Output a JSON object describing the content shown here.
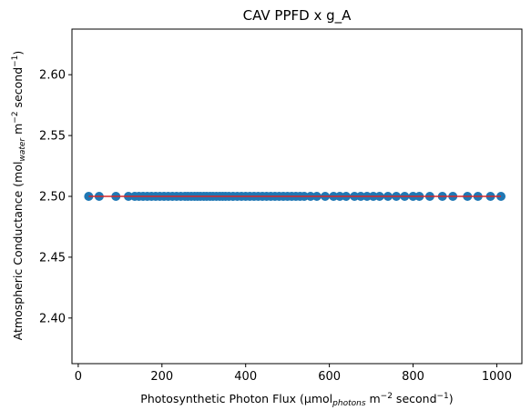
{
  "chart_data": {
    "type": "scatter",
    "title": "CAV PPFD x g_A",
    "xlabel": {
      "prefix": "Photosynthetic Photon Flux (µmol",
      "sub": "photons",
      "mid": " m",
      "sup1": "−2",
      "mid2": " second",
      "sup2": "−1",
      "suffix": ")"
    },
    "ylabel": {
      "prefix": "Atmospheric Conductance (mol",
      "sub": "water",
      "mid": " m",
      "sup1": "−2",
      "mid2": " second",
      "sup2": "−1",
      "suffix": ")"
    },
    "xlim": [
      -15,
      1060
    ],
    "ylim": [
      2.3625,
      2.6375
    ],
    "xticks": [
      0,
      200,
      400,
      600,
      800,
      1000
    ],
    "xtick_labels": [
      "0",
      "200",
      "400",
      "600",
      "800",
      "1000"
    ],
    "yticks": [
      2.4,
      2.45,
      2.5,
      2.55,
      2.6
    ],
    "ytick_labels": [
      "2.40",
      "2.45",
      "2.50",
      "2.55",
      "2.60"
    ],
    "grid": false,
    "series": [
      {
        "marker_color": "#1f77b4",
        "x": [
          25,
          50,
          90,
          120,
          135,
          145,
          155,
          165,
          175,
          185,
          195,
          205,
          215,
          225,
          235,
          245,
          255,
          262,
          270,
          278,
          285,
          292,
          300,
          307,
          315,
          322,
          330,
          338,
          345,
          352,
          360,
          370,
          380,
          390,
          400,
          410,
          420,
          430,
          440,
          450,
          460,
          470,
          480,
          490,
          500,
          510,
          520,
          530,
          540,
          555,
          570,
          590,
          610,
          625,
          640,
          660,
          675,
          690,
          705,
          720,
          740,
          760,
          780,
          800,
          815,
          840,
          870,
          895,
          930,
          955,
          985,
          1010
        ],
        "y": [
          2.5,
          2.5,
          2.5,
          2.5,
          2.5,
          2.5,
          2.5,
          2.5,
          2.5,
          2.5,
          2.5,
          2.5,
          2.5,
          2.5,
          2.5,
          2.5,
          2.5,
          2.5,
          2.5,
          2.5,
          2.5,
          2.5,
          2.5,
          2.5,
          2.5,
          2.5,
          2.5,
          2.5,
          2.5,
          2.5,
          2.5,
          2.5,
          2.5,
          2.5,
          2.5,
          2.5,
          2.5,
          2.5,
          2.5,
          2.5,
          2.5,
          2.5,
          2.5,
          2.5,
          2.5,
          2.5,
          2.5,
          2.5,
          2.5,
          2.5,
          2.5,
          2.5,
          2.5,
          2.5,
          2.5,
          2.5,
          2.5,
          2.5,
          2.5,
          2.5,
          2.5,
          2.5,
          2.5,
          2.5,
          2.5,
          2.5,
          2.5,
          2.5,
          2.5,
          2.5,
          2.5,
          2.5
        ]
      }
    ],
    "fit_line": {
      "color": "#d62728",
      "x": [
        25,
        1010
      ],
      "y": [
        2.5,
        2.5
      ]
    }
  }
}
